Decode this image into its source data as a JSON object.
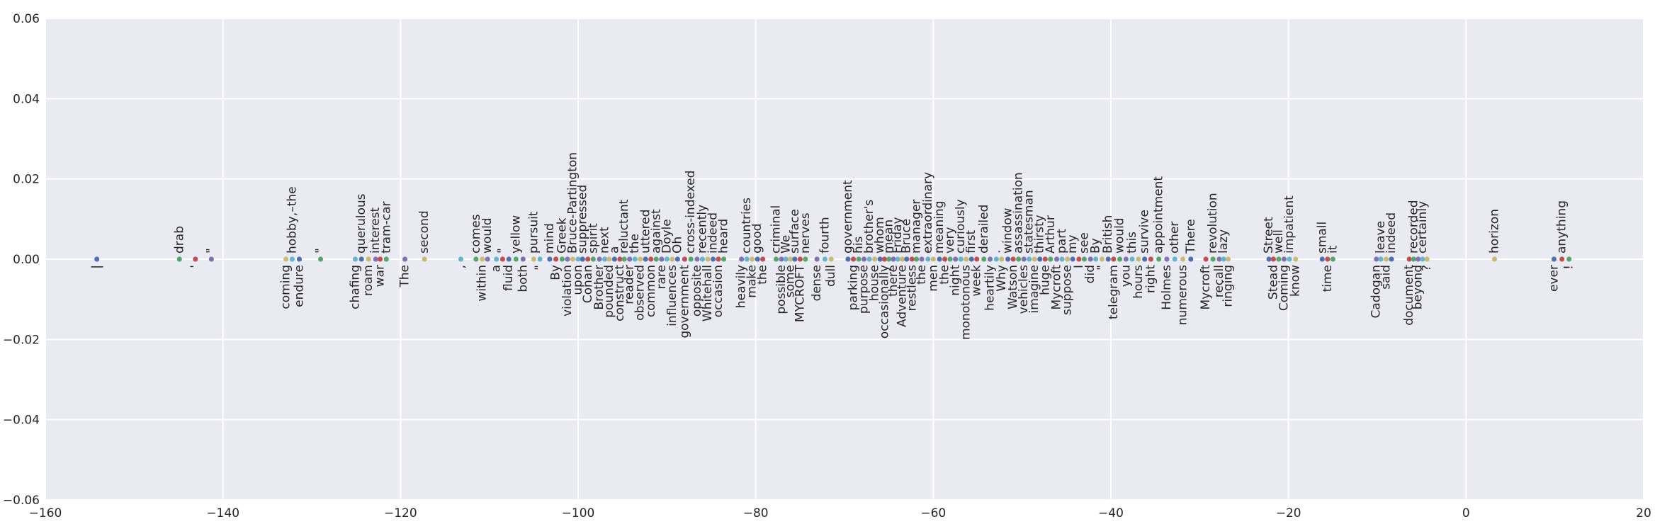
{
  "chart_data": {
    "type": "scatter",
    "title": "",
    "xlabel": "",
    "ylabel": "",
    "xlim": [
      -160,
      20
    ],
    "ylim": [
      -0.06,
      0.06
    ],
    "grid": true,
    "x_ticks": [
      "−160",
      "−140",
      "−120",
      "−100",
      "−80",
      "−60",
      "−40",
      "−20",
      "0",
      "20"
    ],
    "y_ticks": [
      "−0.06",
      "−0.04",
      "−0.02",
      "0.00",
      "0.02",
      "0.04",
      "0.06"
    ],
    "points": [
      {
        "x": -154.2,
        "y": 0,
        "label": "|",
        "color": "#4c72b0"
      },
      {
        "x": -144.9,
        "y": 0,
        "label": "drab",
        "color": "#55a868"
      },
      {
        "x": -143.1,
        "y": 0,
        "label": "'",
        "color": "#c44e52"
      },
      {
        "x": -141.3,
        "y": 0,
        "label": "\"",
        "color": "#8172b2"
      },
      {
        "x": -132.9,
        "y": 0,
        "label": "coming",
        "color": "#ccb974"
      },
      {
        "x": -132.2,
        "y": 0,
        "label": "hobby,–the",
        "color": "#64b5cd"
      },
      {
        "x": -131.4,
        "y": 0,
        "label": "endure",
        "color": "#4c72b0"
      },
      {
        "x": -129.0,
        "y": 0,
        "label": "\"",
        "color": "#55a868"
      },
      {
        "x": -125.1,
        "y": 0,
        "label": "chafing",
        "color": "#64b5cd"
      },
      {
        "x": -124.4,
        "y": 0,
        "label": "querulous",
        "color": "#4c72b0"
      },
      {
        "x": -123.6,
        "y": 0,
        "label": "roam",
        "color": "#ccb974"
      },
      {
        "x": -122.8,
        "y": 0,
        "label": "interest",
        "color": "#8172b2"
      },
      {
        "x": -122.3,
        "y": 0,
        "label": "war",
        "color": "#c44e52"
      },
      {
        "x": -121.6,
        "y": 0,
        "label": "tram-car",
        "color": "#55a868"
      },
      {
        "x": -119.5,
        "y": 0,
        "label": "The",
        "color": "#8172b2"
      },
      {
        "x": -117.3,
        "y": 0,
        "label": "second",
        "color": "#ccb974"
      },
      {
        "x": -113.2,
        "y": 0,
        "label": ",",
        "color": "#64b5cd"
      },
      {
        "x": -111.5,
        "y": 0,
        "label": "comes",
        "color": "#55a868"
      },
      {
        "x": -110.8,
        "y": 0,
        "label": "within",
        "color": "#ccb974"
      },
      {
        "x": -110.2,
        "y": 0,
        "label": "would",
        "color": "#8172b2"
      },
      {
        "x": -109.2,
        "y": 0,
        "label": "a",
        "color": "#64b5cd"
      },
      {
        "x": -108.5,
        "y": 0,
        "label": "\"",
        "color": "#c44e52"
      },
      {
        "x": -107.8,
        "y": 0,
        "label": "fluid",
        "color": "#4c72b0"
      },
      {
        "x": -107.0,
        "y": 0,
        "label": "yellow",
        "color": "#55a868"
      },
      {
        "x": -106.2,
        "y": 0,
        "label": "both",
        "color": "#8172b2"
      },
      {
        "x": -105.0,
        "y": 0,
        "label": "pursuit",
        "color": "#ccb974"
      },
      {
        "x": -104.3,
        "y": 0,
        "label": "\"",
        "color": "#64b5cd"
      },
      {
        "x": -103.2,
        "y": 0,
        "label": "mind",
        "color": "#4c72b0"
      },
      {
        "x": -102.5,
        "y": 0,
        "label": "By",
        "color": "#c44e52"
      },
      {
        "x": -101.8,
        "y": 0,
        "label": "Greek",
        "color": "#55a868"
      },
      {
        "x": -101.2,
        "y": 0,
        "label": "violation",
        "color": "#8172b2"
      },
      {
        "x": -100.6,
        "y": 0,
        "label": "Bruce-Partington",
        "color": "#ccb974"
      },
      {
        "x": -100.0,
        "y": 0,
        "label": "upon",
        "color": "#64b5cd"
      },
      {
        "x": -99.5,
        "y": 0,
        "label": "suppressed",
        "color": "#4c72b0"
      },
      {
        "x": -98.9,
        "y": 0,
        "label": "Conan",
        "color": "#c44e52"
      },
      {
        "x": -98.3,
        "y": 0,
        "label": "spirit",
        "color": "#55a868"
      },
      {
        "x": -97.6,
        "y": 0,
        "label": "Brother",
        "color": "#8172b2"
      },
      {
        "x": -97.0,
        "y": 0,
        "label": "next",
        "color": "#64b5cd"
      },
      {
        "x": -96.5,
        "y": 0,
        "label": "pounded",
        "color": "#ccb974"
      },
      {
        "x": -95.9,
        "y": 0,
        "label": "a",
        "color": "#4c72b0"
      },
      {
        "x": -95.3,
        "y": 0,
        "label": "construct",
        "color": "#c44e52"
      },
      {
        "x": -94.8,
        "y": 0,
        "label": "reluctant",
        "color": "#55a868"
      },
      {
        "x": -94.2,
        "y": 0,
        "label": "reader",
        "color": "#8172b2"
      },
      {
        "x": -93.6,
        "y": 0,
        "label": "the",
        "color": "#64b5cd"
      },
      {
        "x": -93.0,
        "y": 0,
        "label": "observed",
        "color": "#ccb974"
      },
      {
        "x": -92.4,
        "y": 0,
        "label": "uttered",
        "color": "#4c72b0"
      },
      {
        "x": -91.8,
        "y": 0,
        "label": "common",
        "color": "#c44e52"
      },
      {
        "x": -91.2,
        "y": 0,
        "label": "against",
        "color": "#55a868"
      },
      {
        "x": -90.6,
        "y": 0,
        "label": "rare",
        "color": "#8172b2"
      },
      {
        "x": -90.0,
        "y": 0,
        "label": "Doyle",
        "color": "#64b5cd"
      },
      {
        "x": -89.4,
        "y": 0,
        "label": "influences",
        "color": "#ccb974"
      },
      {
        "x": -88.8,
        "y": 0,
        "label": "Oh",
        "color": "#4c72b0"
      },
      {
        "x": -88.0,
        "y": 0,
        "label": "government",
        "color": "#c44e52"
      },
      {
        "x": -87.3,
        "y": 0,
        "label": "cross-indexed",
        "color": "#55a868"
      },
      {
        "x": -86.6,
        "y": 0,
        "label": "opposite",
        "color": "#8172b2"
      },
      {
        "x": -86.0,
        "y": 0,
        "label": "recently",
        "color": "#64b5cd"
      },
      {
        "x": -85.4,
        "y": 0,
        "label": "Whitehall",
        "color": "#ccb974"
      },
      {
        "x": -84.8,
        "y": 0,
        "label": "indeed",
        "color": "#4c72b0"
      },
      {
        "x": -84.2,
        "y": 0,
        "label": "occasion",
        "color": "#c44e52"
      },
      {
        "x": -83.6,
        "y": 0,
        "label": "heard",
        "color": "#55a868"
      },
      {
        "x": -81.6,
        "y": 0,
        "label": "heavily",
        "color": "#8172b2"
      },
      {
        "x": -81.0,
        "y": 0,
        "label": "countries",
        "color": "#64b5cd"
      },
      {
        "x": -80.4,
        "y": 0,
        "label": "make",
        "color": "#ccb974"
      },
      {
        "x": -79.8,
        "y": 0,
        "label": "good",
        "color": "#4c72b0"
      },
      {
        "x": -79.2,
        "y": 0,
        "label": "the",
        "color": "#c44e52"
      },
      {
        "x": -77.7,
        "y": 0,
        "label": "criminal",
        "color": "#55a868"
      },
      {
        "x": -77.1,
        "y": 0,
        "label": "possible",
        "color": "#8172b2"
      },
      {
        "x": -76.6,
        "y": 0,
        "label": "We",
        "color": "#64b5cd"
      },
      {
        "x": -76.1,
        "y": 0,
        "label": "some",
        "color": "#ccb974"
      },
      {
        "x": -75.6,
        "y": 0,
        "label": "surface",
        "color": "#4c72b0"
      },
      {
        "x": -75.0,
        "y": 0,
        "label": "MYCROFT",
        "color": "#c44e52"
      },
      {
        "x": -74.4,
        "y": 0,
        "label": "nerves",
        "color": "#55a868"
      },
      {
        "x": -73.1,
        "y": 0,
        "label": "dense",
        "color": "#8172b2"
      },
      {
        "x": -72.2,
        "y": 0,
        "label": "fourth",
        "color": "#64b5cd"
      },
      {
        "x": -71.5,
        "y": 0,
        "label": "dull",
        "color": "#ccb974"
      },
      {
        "x": -69.6,
        "y": 0,
        "label": "government",
        "color": "#4c72b0"
      },
      {
        "x": -69.0,
        "y": 0,
        "label": "parking",
        "color": "#c44e52"
      },
      {
        "x": -68.4,
        "y": 0,
        "label": "his",
        "color": "#55a868"
      },
      {
        "x": -67.8,
        "y": 0,
        "label": "purpose",
        "color": "#8172b2"
      },
      {
        "x": -67.2,
        "y": 0,
        "label": "brother's",
        "color": "#64b5cd"
      },
      {
        "x": -66.6,
        "y": 0,
        "label": "house",
        "color": "#ccb974"
      },
      {
        "x": -66.0,
        "y": 0,
        "label": "whom",
        "color": "#4c72b0"
      },
      {
        "x": -65.5,
        "y": 0,
        "label": "occasionally",
        "color": "#c44e52"
      },
      {
        "x": -65.0,
        "y": 0,
        "label": "mean",
        "color": "#55a868"
      },
      {
        "x": -64.5,
        "y": 0,
        "label": "there",
        "color": "#8172b2"
      },
      {
        "x": -64.0,
        "y": 0,
        "label": "Friday",
        "color": "#64b5cd"
      },
      {
        "x": -63.5,
        "y": 0,
        "label": "Adventure",
        "color": "#ccb974"
      },
      {
        "x": -63.0,
        "y": 0,
        "label": "Bruce",
        "color": "#4c72b0"
      },
      {
        "x": -62.4,
        "y": 0,
        "label": "restless",
        "color": "#c44e52"
      },
      {
        "x": -61.9,
        "y": 0,
        "label": "manager",
        "color": "#55a868"
      },
      {
        "x": -61.3,
        "y": 0,
        "label": "the",
        "color": "#8172b2"
      },
      {
        "x": -60.6,
        "y": 0,
        "label": "extraordinary",
        "color": "#64b5cd"
      },
      {
        "x": -60.0,
        "y": 0,
        "label": "men",
        "color": "#ccb974"
      },
      {
        "x": -59.3,
        "y": 0,
        "label": "meaning",
        "color": "#4c72b0"
      },
      {
        "x": -58.7,
        "y": 0,
        "label": "the",
        "color": "#c44e52"
      },
      {
        "x": -58.1,
        "y": 0,
        "label": "very",
        "color": "#55a868"
      },
      {
        "x": -57.5,
        "y": 0,
        "label": "night",
        "color": "#8172b2"
      },
      {
        "x": -56.9,
        "y": 0,
        "label": "curiously",
        "color": "#64b5cd"
      },
      {
        "x": -56.3,
        "y": 0,
        "label": "monotonous",
        "color": "#ccb974"
      },
      {
        "x": -55.7,
        "y": 0,
        "label": "first",
        "color": "#4c72b0"
      },
      {
        "x": -55.1,
        "y": 0,
        "label": "week",
        "color": "#c44e52"
      },
      {
        "x": -54.3,
        "y": 0,
        "label": "derailed",
        "color": "#55a868"
      },
      {
        "x": -53.6,
        "y": 0,
        "label": "heartily",
        "color": "#8172b2"
      },
      {
        "x": -52.9,
        "y": 0,
        "label": ".",
        "color": "#64b5cd"
      },
      {
        "x": -52.3,
        "y": 0,
        "label": "Why",
        "color": "#ccb974"
      },
      {
        "x": -51.6,
        "y": 0,
        "label": "window",
        "color": "#4c72b0"
      },
      {
        "x": -51.0,
        "y": 0,
        "label": "Watson",
        "color": "#c44e52"
      },
      {
        "x": -50.4,
        "y": 0,
        "label": "assassination",
        "color": "#55a868"
      },
      {
        "x": -49.8,
        "y": 0,
        "label": "vehicles",
        "color": "#8172b2"
      },
      {
        "x": -49.2,
        "y": 0,
        "label": "statesman",
        "color": "#64b5cd"
      },
      {
        "x": -48.6,
        "y": 0,
        "label": "imagine",
        "color": "#ccb974"
      },
      {
        "x": -48.0,
        "y": 0,
        "label": "thirsty",
        "color": "#4c72b0"
      },
      {
        "x": -47.4,
        "y": 0,
        "label": "huge",
        "color": "#c44e52"
      },
      {
        "x": -46.8,
        "y": 0,
        "label": "Arthur",
        "color": "#55a868"
      },
      {
        "x": -46.1,
        "y": 0,
        "label": "Mycroft",
        "color": "#8172b2"
      },
      {
        "x": -45.5,
        "y": 0,
        "label": "part",
        "color": "#64b5cd"
      },
      {
        "x": -44.9,
        "y": 0,
        "label": "suppose",
        "color": "#ccb974"
      },
      {
        "x": -44.3,
        "y": 0,
        "label": "my",
        "color": "#4c72b0"
      },
      {
        "x": -43.6,
        "y": 0,
        "label": "I",
        "color": "#c44e52"
      },
      {
        "x": -43.0,
        "y": 0,
        "label": "see",
        "color": "#55a868"
      },
      {
        "x": -42.3,
        "y": 0,
        "label": "did",
        "color": "#8172b2"
      },
      {
        "x": -41.7,
        "y": 0,
        "label": "By",
        "color": "#64b5cd"
      },
      {
        "x": -41.0,
        "y": 0,
        "label": "\"",
        "color": "#ccb974"
      },
      {
        "x": -40.3,
        "y": 0,
        "label": "British",
        "color": "#4c72b0"
      },
      {
        "x": -39.7,
        "y": 0,
        "label": "telegram",
        "color": "#c44e52"
      },
      {
        "x": -39.0,
        "y": 0,
        "label": "would",
        "color": "#55a868"
      },
      {
        "x": -38.3,
        "y": 0,
        "label": "you",
        "color": "#8172b2"
      },
      {
        "x": -37.6,
        "y": 0,
        "label": "this",
        "color": "#64b5cd"
      },
      {
        "x": -36.9,
        "y": 0,
        "label": "hours",
        "color": "#ccb974"
      },
      {
        "x": -36.2,
        "y": 0,
        "label": "survive",
        "color": "#4c72b0"
      },
      {
        "x": -35.5,
        "y": 0,
        "label": "right",
        "color": "#c44e52"
      },
      {
        "x": -34.6,
        "y": 0,
        "label": "appointment",
        "color": "#55a868"
      },
      {
        "x": -33.7,
        "y": 0,
        "label": "Holmes",
        "color": "#8172b2"
      },
      {
        "x": -32.8,
        "y": 0,
        "label": "other",
        "color": "#64b5cd"
      },
      {
        "x": -31.9,
        "y": 0,
        "label": "numerous",
        "color": "#ccb974"
      },
      {
        "x": -31.0,
        "y": 0,
        "label": "There",
        "color": "#4c72b0"
      },
      {
        "x": -29.3,
        "y": 0,
        "label": "Mycroft",
        "color": "#c44e52"
      },
      {
        "x": -28.5,
        "y": 0,
        "label": "revolution",
        "color": "#55a868"
      },
      {
        "x": -27.8,
        "y": 0,
        "label": "recall",
        "color": "#8172b2"
      },
      {
        "x": -27.3,
        "y": 0,
        "label": "lazy",
        "color": "#64b5cd"
      },
      {
        "x": -26.8,
        "y": 0,
        "label": "ringing",
        "color": "#ccb974"
      },
      {
        "x": -22.2,
        "y": 0,
        "label": "Street",
        "color": "#4c72b0"
      },
      {
        "x": -21.7,
        "y": 0,
        "label": "Stead",
        "color": "#c44e52"
      },
      {
        "x": -21.1,
        "y": 0,
        "label": "well",
        "color": "#55a868"
      },
      {
        "x": -20.5,
        "y": 0,
        "label": "Coming",
        "color": "#8172b2"
      },
      {
        "x": -19.9,
        "y": 0,
        "label": "impatient",
        "color": "#64b5cd"
      },
      {
        "x": -19.2,
        "y": 0,
        "label": "know",
        "color": "#ccb974"
      },
      {
        "x": -16.2,
        "y": 0,
        "label": "small",
        "color": "#4c72b0"
      },
      {
        "x": -15.6,
        "y": 0,
        "label": "time",
        "color": "#c44e52"
      },
      {
        "x": -15.0,
        "y": 0,
        "label": "it",
        "color": "#55a868"
      },
      {
        "x": -10.1,
        "y": 0,
        "label": "Cadogan",
        "color": "#8172b2"
      },
      {
        "x": -9.6,
        "y": 0,
        "label": "leave",
        "color": "#64b5cd"
      },
      {
        "x": -9.0,
        "y": 0,
        "label": "said",
        "color": "#ccb974"
      },
      {
        "x": -8.4,
        "y": 0,
        "label": "indeed",
        "color": "#4c72b0"
      },
      {
        "x": -6.4,
        "y": 0,
        "label": "document",
        "color": "#c44e52"
      },
      {
        "x": -5.9,
        "y": 0,
        "label": "recorded",
        "color": "#55a868"
      },
      {
        "x": -5.4,
        "y": 0,
        "label": "beyond",
        "color": "#8172b2"
      },
      {
        "x": -4.9,
        "y": 0,
        "label": "certainly",
        "color": "#64b5cd"
      },
      {
        "x": -4.4,
        "y": 0,
        "label": "?",
        "color": "#ccb974"
      },
      {
        "x": 3.2,
        "y": 0,
        "label": "horizon",
        "color": "#ccb974"
      },
      {
        "x": 9.9,
        "y": 0,
        "label": "ever",
        "color": "#4c72b0"
      },
      {
        "x": 10.8,
        "y": 0,
        "label": "anything",
        "color": "#c44e52"
      },
      {
        "x": 11.6,
        "y": 0,
        "label": "!",
        "color": "#55a868"
      }
    ]
  }
}
